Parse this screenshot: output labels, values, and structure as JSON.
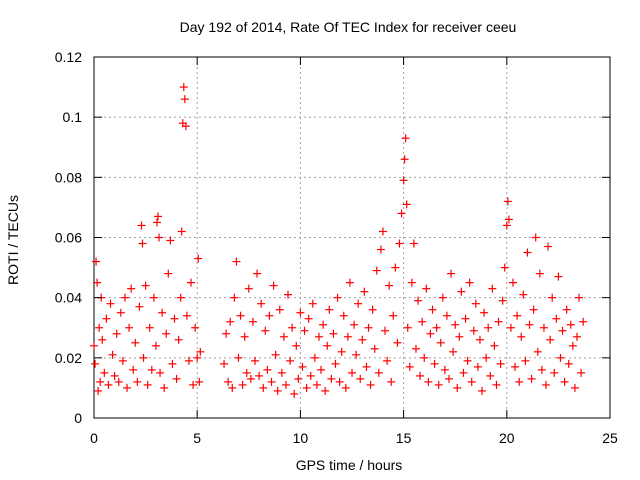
{
  "chart_data": {
    "type": "scatter",
    "title": "Day 192 of 2014, Rate Of TEC Index for receiver ceeu",
    "xlabel": "GPS time / hours",
    "ylabel": "ROTI / TECUs",
    "xlim": [
      0,
      25
    ],
    "ylim": [
      0,
      0.12
    ],
    "xticks": [
      0,
      5,
      10,
      15,
      20,
      25
    ],
    "xtick_labels": [
      "0",
      "5",
      "10",
      "15",
      "20",
      "25"
    ],
    "yticks": [
      0,
      0.02,
      0.04,
      0.06,
      0.08,
      0.1,
      0.12
    ],
    "ytick_labels": [
      "0",
      "0.02",
      "0.04",
      "0.06",
      "0.08",
      "0.1",
      "0.12"
    ],
    "grid": true,
    "marker": "+",
    "series": [
      {
        "name": "ROTI",
        "color": "#ff0000",
        "data_gap_hours": [
          5.2,
          6.2
        ],
        "points": [
          [
            0.0,
            0.024
          ],
          [
            0.05,
            0.018
          ],
          [
            0.1,
            0.052
          ],
          [
            0.15,
            0.045
          ],
          [
            0.2,
            0.009
          ],
          [
            0.25,
            0.03
          ],
          [
            0.3,
            0.012
          ],
          [
            0.35,
            0.04
          ],
          [
            0.4,
            0.026
          ],
          [
            0.5,
            0.015
          ],
          [
            0.6,
            0.033
          ],
          [
            0.7,
            0.011
          ],
          [
            0.8,
            0.038
          ],
          [
            0.9,
            0.021
          ],
          [
            1.0,
            0.014
          ],
          [
            1.1,
            0.028
          ],
          [
            1.2,
            0.012
          ],
          [
            1.3,
            0.035
          ],
          [
            1.4,
            0.019
          ],
          [
            1.5,
            0.04
          ],
          [
            1.6,
            0.01
          ],
          [
            1.7,
            0.03
          ],
          [
            1.8,
            0.043
          ],
          [
            1.9,
            0.016
          ],
          [
            2.0,
            0.025
          ],
          [
            2.1,
            0.012
          ],
          [
            2.2,
            0.037
          ],
          [
            2.3,
            0.064
          ],
          [
            2.35,
            0.058
          ],
          [
            2.4,
            0.02
          ],
          [
            2.5,
            0.044
          ],
          [
            2.6,
            0.011
          ],
          [
            2.7,
            0.03
          ],
          [
            2.8,
            0.016
          ],
          [
            2.9,
            0.04
          ],
          [
            3.0,
            0.024
          ],
          [
            3.05,
            0.065
          ],
          [
            3.1,
            0.067
          ],
          [
            3.15,
            0.06
          ],
          [
            3.2,
            0.015
          ],
          [
            3.3,
            0.035
          ],
          [
            3.4,
            0.01
          ],
          [
            3.5,
            0.028
          ],
          [
            3.6,
            0.048
          ],
          [
            3.7,
            0.059
          ],
          [
            3.8,
            0.018
          ],
          [
            3.9,
            0.033
          ],
          [
            4.0,
            0.013
          ],
          [
            4.1,
            0.026
          ],
          [
            4.2,
            0.04
          ],
          [
            4.25,
            0.062
          ],
          [
            4.3,
            0.098
          ],
          [
            4.35,
            0.11
          ],
          [
            4.4,
            0.106
          ],
          [
            4.45,
            0.097
          ],
          [
            4.5,
            0.034
          ],
          [
            4.6,
            0.019
          ],
          [
            4.7,
            0.045
          ],
          [
            4.8,
            0.011
          ],
          [
            4.9,
            0.03
          ],
          [
            5.0,
            0.02
          ],
          [
            5.05,
            0.053
          ],
          [
            5.1,
            0.012
          ],
          [
            5.15,
            0.022
          ],
          [
            6.3,
            0.018
          ],
          [
            6.4,
            0.028
          ],
          [
            6.5,
            0.012
          ],
          [
            6.6,
            0.032
          ],
          [
            6.7,
            0.01
          ],
          [
            6.8,
            0.04
          ],
          [
            6.9,
            0.052
          ],
          [
            7.0,
            0.02
          ],
          [
            7.1,
            0.034
          ],
          [
            7.2,
            0.011
          ],
          [
            7.3,
            0.027
          ],
          [
            7.4,
            0.015
          ],
          [
            7.5,
            0.043
          ],
          [
            7.6,
            0.013
          ],
          [
            7.7,
            0.032
          ],
          [
            7.8,
            0.019
          ],
          [
            7.9,
            0.048
          ],
          [
            8.0,
            0.014
          ],
          [
            8.1,
            0.038
          ],
          [
            8.2,
            0.01
          ],
          [
            8.3,
            0.029
          ],
          [
            8.4,
            0.016
          ],
          [
            8.5,
            0.034
          ],
          [
            8.6,
            0.012
          ],
          [
            8.7,
            0.044
          ],
          [
            8.8,
            0.021
          ],
          [
            8.9,
            0.009
          ],
          [
            9.0,
            0.036
          ],
          [
            9.1,
            0.015
          ],
          [
            9.2,
            0.027
          ],
          [
            9.3,
            0.011
          ],
          [
            9.4,
            0.041
          ],
          [
            9.5,
            0.019
          ],
          [
            9.6,
            0.03
          ],
          [
            9.7,
            0.008
          ],
          [
            9.8,
            0.024
          ],
          [
            9.9,
            0.013
          ],
          [
            10.0,
            0.035
          ],
          [
            10.1,
            0.017
          ],
          [
            10.2,
            0.029
          ],
          [
            10.3,
            0.01
          ],
          [
            10.4,
            0.033
          ],
          [
            10.5,
            0.014
          ],
          [
            10.6,
            0.038
          ],
          [
            10.7,
            0.02
          ],
          [
            10.8,
            0.011
          ],
          [
            10.9,
            0.027
          ],
          [
            11.0,
            0.016
          ],
          [
            11.1,
            0.031
          ],
          [
            11.2,
            0.009
          ],
          [
            11.3,
            0.024
          ],
          [
            11.4,
            0.036
          ],
          [
            11.5,
            0.013
          ],
          [
            11.6,
            0.028
          ],
          [
            11.7,
            0.018
          ],
          [
            11.8,
            0.04
          ],
          [
            11.9,
            0.012
          ],
          [
            12.0,
            0.022
          ],
          [
            12.1,
            0.034
          ],
          [
            12.2,
            0.01
          ],
          [
            12.3,
            0.027
          ],
          [
            12.4,
            0.045
          ],
          [
            12.5,
            0.015
          ],
          [
            12.6,
            0.031
          ],
          [
            12.7,
            0.021
          ],
          [
            12.8,
            0.038
          ],
          [
            12.9,
            0.013
          ],
          [
            13.0,
            0.026
          ],
          [
            13.1,
            0.042
          ],
          [
            13.2,
            0.017
          ],
          [
            13.3,
            0.03
          ],
          [
            13.4,
            0.011
          ],
          [
            13.5,
            0.036
          ],
          [
            13.6,
            0.023
          ],
          [
            13.7,
            0.049
          ],
          [
            13.8,
            0.015
          ],
          [
            13.9,
            0.056
          ],
          [
            14.0,
            0.062
          ],
          [
            14.1,
            0.029
          ],
          [
            14.2,
            0.019
          ],
          [
            14.3,
            0.044
          ],
          [
            14.4,
            0.012
          ],
          [
            14.5,
            0.034
          ],
          [
            14.6,
            0.05
          ],
          [
            14.7,
            0.025
          ],
          [
            14.8,
            0.058
          ],
          [
            14.9,
            0.068
          ],
          [
            15.0,
            0.079
          ],
          [
            15.05,
            0.086
          ],
          [
            15.1,
            0.093
          ],
          [
            15.15,
            0.071
          ],
          [
            15.2,
            0.03
          ],
          [
            15.3,
            0.017
          ],
          [
            15.4,
            0.045
          ],
          [
            15.5,
            0.058
          ],
          [
            15.6,
            0.023
          ],
          [
            15.7,
            0.039
          ],
          [
            15.8,
            0.014
          ],
          [
            15.9,
            0.032
          ],
          [
            16.0,
            0.02
          ],
          [
            16.1,
            0.043
          ],
          [
            16.2,
            0.012
          ],
          [
            16.3,
            0.028
          ],
          [
            16.4,
            0.036
          ],
          [
            16.5,
            0.018
          ],
          [
            16.6,
            0.03
          ],
          [
            16.7,
            0.011
          ],
          [
            16.8,
            0.025
          ],
          [
            16.9,
            0.04
          ],
          [
            17.0,
            0.016
          ],
          [
            17.1,
            0.034
          ],
          [
            17.2,
            0.013
          ],
          [
            17.3,
            0.048
          ],
          [
            17.4,
            0.022
          ],
          [
            17.5,
            0.031
          ],
          [
            17.6,
            0.01
          ],
          [
            17.7,
            0.027
          ],
          [
            17.8,
            0.042
          ],
          [
            17.9,
            0.015
          ],
          [
            18.0,
            0.033
          ],
          [
            18.1,
            0.019
          ],
          [
            18.2,
            0.045
          ],
          [
            18.3,
            0.012
          ],
          [
            18.4,
            0.029
          ],
          [
            18.5,
            0.038
          ],
          [
            18.6,
            0.017
          ],
          [
            18.7,
            0.026
          ],
          [
            18.8,
            0.009
          ],
          [
            18.9,
            0.035
          ],
          [
            19.0,
            0.02
          ],
          [
            19.1,
            0.03
          ],
          [
            19.2,
            0.014
          ],
          [
            19.3,
            0.043
          ],
          [
            19.4,
            0.024
          ],
          [
            19.5,
            0.011
          ],
          [
            19.6,
            0.032
          ],
          [
            19.7,
            0.018
          ],
          [
            19.8,
            0.039
          ],
          [
            19.9,
            0.05
          ],
          [
            20.0,
            0.064
          ],
          [
            20.05,
            0.072
          ],
          [
            20.1,
            0.066
          ],
          [
            20.2,
            0.03
          ],
          [
            20.3,
            0.045
          ],
          [
            20.4,
            0.017
          ],
          [
            20.5,
            0.034
          ],
          [
            20.6,
            0.012
          ],
          [
            20.7,
            0.027
          ],
          [
            20.8,
            0.041
          ],
          [
            20.9,
            0.019
          ],
          [
            21.0,
            0.055
          ],
          [
            21.1,
            0.031
          ],
          [
            21.2,
            0.013
          ],
          [
            21.3,
            0.036
          ],
          [
            21.4,
            0.06
          ],
          [
            21.5,
            0.022
          ],
          [
            21.6,
            0.048
          ],
          [
            21.7,
            0.016
          ],
          [
            21.8,
            0.03
          ],
          [
            21.9,
            0.011
          ],
          [
            22.0,
            0.057
          ],
          [
            22.1,
            0.026
          ],
          [
            22.2,
            0.04
          ],
          [
            22.3,
            0.015
          ],
          [
            22.4,
            0.033
          ],
          [
            22.5,
            0.047
          ],
          [
            22.6,
            0.02
          ],
          [
            22.7,
            0.029
          ],
          [
            22.8,
            0.012
          ],
          [
            22.9,
            0.036
          ],
          [
            23.0,
            0.018
          ],
          [
            23.1,
            0.031
          ],
          [
            23.2,
            0.024
          ],
          [
            23.3,
            0.01
          ],
          [
            23.4,
            0.027
          ],
          [
            23.5,
            0.04
          ],
          [
            23.6,
            0.015
          ],
          [
            23.7,
            0.032
          ]
        ]
      }
    ]
  }
}
